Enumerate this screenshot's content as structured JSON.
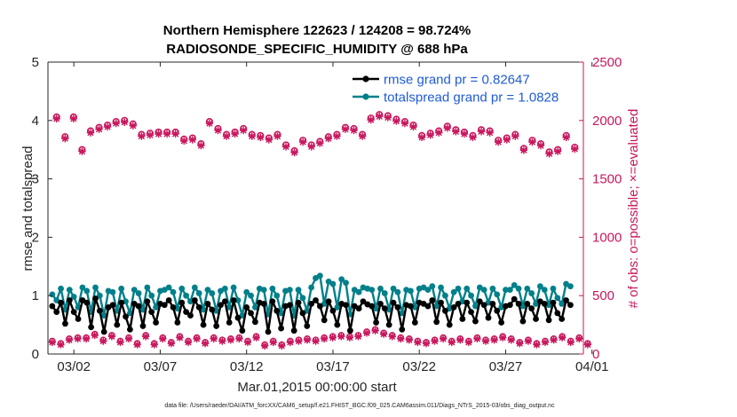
{
  "chart_data": {
    "type": "line",
    "title_line1": "Northern Hemisphere 122623 / 124208 = 98.724%",
    "title_line2": "RADIOSONDE_SPECIFIC_HUMIDITY @ 688 hPa",
    "xlabel": "Mar.01,2015 00:00:00 start",
    "ylabel_left": "rmse and totalspread",
    "ylabel_right": "# of obs: o=possible; ×=evaluated",
    "footnote": "data file: /Users/raeder/DAI/ATM_forcXX/CAM6_setup/f.e21.FHIST_BGC.f09_025.CAM6assim.011/Diags_NTrS_2015-03/obs_diag_output.nc",
    "x_range": [
      0.5,
      31.5
    ],
    "x_ticks": [
      {
        "value": 2,
        "label": "03/02"
      },
      {
        "value": 7,
        "label": "03/07"
      },
      {
        "value": 12,
        "label": "03/12"
      },
      {
        "value": 17,
        "label": "03/17"
      },
      {
        "value": 22,
        "label": "03/22"
      },
      {
        "value": 27,
        "label": "03/27"
      },
      {
        "value": 32,
        "label": "04/01"
      }
    ],
    "y_left_range": [
      0,
      5
    ],
    "y_left_ticks": [
      "0",
      "1",
      "2",
      "3",
      "4",
      "5"
    ],
    "y_right_range": [
      0,
      2500
    ],
    "y_right_ticks": [
      "0",
      "500",
      "1000",
      "1500",
      "2000",
      "2500"
    ],
    "colors": {
      "rmse": "#000000",
      "spread": "#00808a",
      "obs": "#c8175d",
      "legend_text": "#1f5bd6"
    },
    "legend": [
      {
        "label": "rmse grand pr = 0.82647",
        "series": "rmse"
      },
      {
        "label": "totalspread grand pr = 1.0828",
        "series": "spread"
      }
    ],
    "x_start": 0.75,
    "x_step": 0.25,
    "rmse": [
      0.82,
      0.72,
      0.88,
      0.52,
      0.92,
      0.72,
      0.6,
      0.92,
      0.88,
      0.46,
      0.95,
      0.74,
      0.38,
      0.8,
      0.84,
      0.5,
      0.88,
      0.64,
      0.42,
      0.86,
      0.82,
      0.48,
      0.9,
      0.72,
      0.54,
      0.86,
      0.84,
      0.92,
      0.8,
      0.54,
      0.88,
      0.72,
      0.66,
      0.92,
      0.8,
      0.5,
      0.86,
      0.76,
      0.48,
      0.84,
      0.9,
      0.54,
      0.92,
      0.62,
      0.4,
      0.8,
      0.7,
      0.55,
      0.88,
      0.86,
      0.38,
      0.9,
      0.74,
      0.44,
      0.82,
      0.84,
      0.4,
      0.88,
      0.7,
      0.48,
      0.86,
      0.92,
      0.82,
      0.58,
      0.9,
      0.74,
      0.5,
      0.86,
      0.84,
      0.4,
      0.82,
      0.78,
      0.9,
      0.85,
      0.82,
      0.54,
      0.86,
      0.78,
      0.5,
      0.88,
      0.8,
      0.42,
      0.84,
      0.82,
      0.54,
      0.88,
      0.86,
      0.82,
      0.92,
      0.55,
      0.88,
      0.74,
      0.5,
      0.8,
      0.86,
      0.6,
      0.88,
      0.72,
      0.56,
      0.9,
      0.84,
      0.62,
      0.86,
      0.74,
      0.54,
      0.82,
      0.84,
      0.94,
      0.86,
      0.56,
      0.86,
      0.78,
      0.6,
      0.9,
      0.86,
      0.58,
      0.88,
      0.7,
      0.6,
      0.92,
      0.84
    ],
    "spread": [
      1.02,
      0.92,
      1.12,
      0.76,
      1.1,
      0.98,
      0.8,
      1.14,
      1.08,
      0.72,
      1.14,
      1.0,
      0.66,
      1.08,
      1.06,
      0.74,
      1.12,
      0.9,
      0.7,
      1.1,
      1.04,
      0.76,
      1.14,
      1.0,
      0.8,
      1.08,
      1.1,
      1.14,
      1.06,
      0.78,
      1.12,
      1.0,
      0.9,
      1.14,
      1.04,
      0.76,
      1.1,
      1.04,
      0.74,
      1.08,
      1.12,
      0.8,
      1.14,
      0.92,
      0.66,
      1.06,
      1.0,
      0.8,
      1.12,
      1.1,
      0.68,
      1.12,
      1.0,
      0.7,
      1.08,
      1.1,
      0.66,
      1.1,
      0.96,
      0.74,
      1.14,
      1.3,
      1.34,
      0.86,
      1.24,
      1.2,
      0.8,
      1.28,
      1.22,
      0.68,
      1.1,
      1.06,
      1.14,
      1.12,
      1.1,
      0.78,
      1.12,
      1.04,
      0.76,
      1.12,
      1.06,
      0.7,
      1.1,
      1.08,
      0.8,
      1.12,
      1.14,
      1.1,
      1.16,
      0.82,
      1.14,
      1.0,
      0.78,
      1.06,
      1.12,
      0.9,
      1.12,
      1.0,
      0.82,
      1.14,
      1.1,
      0.88,
      1.12,
      1.02,
      0.8,
      1.1,
      1.1,
      1.18,
      1.12,
      0.82,
      1.12,
      1.04,
      0.86,
      1.16,
      1.1,
      0.84,
      1.12,
      0.96,
      0.86,
      1.2,
      1.16
    ],
    "obs_possible": [
      2030,
      1860,
      2030,
      1750,
      1910,
      1940,
      1960,
      1990,
      2000,
      1970,
      1880,
      1890,
      1900,
      1900,
      1900,
      1840,
      1850,
      1800,
      1990,
      1930,
      1880,
      1900,
      1930,
      1880,
      1870,
      1850,
      1880,
      1790,
      1740,
      1830,
      1790,
      1820,
      1860,
      1880,
      1940,
      1930,
      1880,
      2020,
      2050,
      2040,
      2010,
      1990,
      1960,
      1870,
      1890,
      1910,
      1950,
      1920,
      1900,
      1870,
      1920,
      1910,
      1830,
      1850,
      1880,
      1760,
      1830,
      1800,
      1730,
      1750,
      1870,
      1770
    ],
    "obs_evaluated": [
      2015,
      1845,
      2015,
      1735,
      1895,
      1925,
      1945,
      1975,
      1985,
      1955,
      1865,
      1875,
      1885,
      1885,
      1885,
      1825,
      1835,
      1785,
      1975,
      1915,
      1865,
      1885,
      1915,
      1865,
      1855,
      1835,
      1865,
      1775,
      1725,
      1815,
      1775,
      1805,
      1845,
      1865,
      1925,
      1915,
      1865,
      2005,
      2035,
      2025,
      1995,
      1975,
      1945,
      1855,
      1875,
      1895,
      1935,
      1905,
      1885,
      1855,
      1905,
      1895,
      1815,
      1835,
      1865,
      1745,
      1815,
      1785,
      1715,
      1735,
      1855,
      1755
    ],
    "obs_low_possible": [
      110,
      90,
      130,
      140,
      140,
      170,
      120,
      160,
      110,
      140,
      90,
      160,
      90,
      140,
      100,
      150,
      110,
      140,
      100,
      140,
      120,
      130,
      140,
      110,
      150,
      80,
      110,
      80,
      110,
      120,
      130,
      120,
      140,
      150,
      160,
      150,
      160,
      190,
      210,
      180,
      160,
      140,
      130,
      110,
      100,
      120,
      140,
      110,
      130,
      110,
      140,
      120,
      130,
      150,
      130,
      100,
      120,
      90,
      110,
      130,
      150,
      110,
      140,
      90
    ],
    "obs_low_evaluated": [
      100,
      80,
      120,
      130,
      130,
      160,
      110,
      150,
      100,
      130,
      80,
      150,
      80,
      130,
      90,
      140,
      100,
      130,
      90,
      130,
      110,
      120,
      130,
      100,
      140,
      70,
      100,
      70,
      100,
      110,
      120,
      110,
      130,
      140,
      150,
      140,
      150,
      180,
      200,
      170,
      150,
      130,
      120,
      100,
      90,
      110,
      130,
      100,
      120,
      100,
      130,
      110,
      120,
      140,
      120,
      90,
      110,
      80,
      100,
      120,
      140,
      100,
      130,
      80
    ]
  }
}
